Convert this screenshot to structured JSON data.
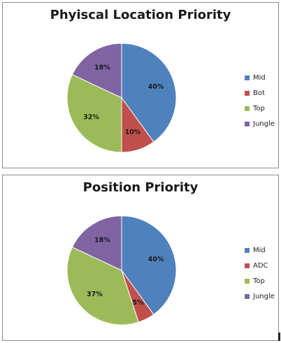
{
  "chart_data": [
    {
      "type": "pie",
      "title": "Phyiscal Location Priority",
      "series": [
        {
          "label": "Mid",
          "value": 40,
          "value_label": "40%",
          "color": "#4f81bd"
        },
        {
          "label": "Bot",
          "value": 10,
          "value_label": "10%",
          "color": "#c0504d"
        },
        {
          "label": "Top",
          "value": 32,
          "value_label": "32%",
          "color": "#9bbb59"
        },
        {
          "label": "Jungle",
          "value": 18,
          "value_label": "18%",
          "color": "#8064a2"
        }
      ],
      "legend_position": "right"
    },
    {
      "type": "pie",
      "title": "Position Priority",
      "series": [
        {
          "label": "Mid",
          "value": 40,
          "value_label": "40%",
          "color": "#4f81bd"
        },
        {
          "label": "ADC",
          "value": 5,
          "value_label": "5%",
          "color": "#c0504d"
        },
        {
          "label": "Top",
          "value": 37,
          "value_label": "37%",
          "color": "#9bbb59"
        },
        {
          "label": "Jungle",
          "value": 18,
          "value_label": "18%",
          "color": "#8064a2"
        }
      ],
      "legend_position": "right"
    }
  ]
}
